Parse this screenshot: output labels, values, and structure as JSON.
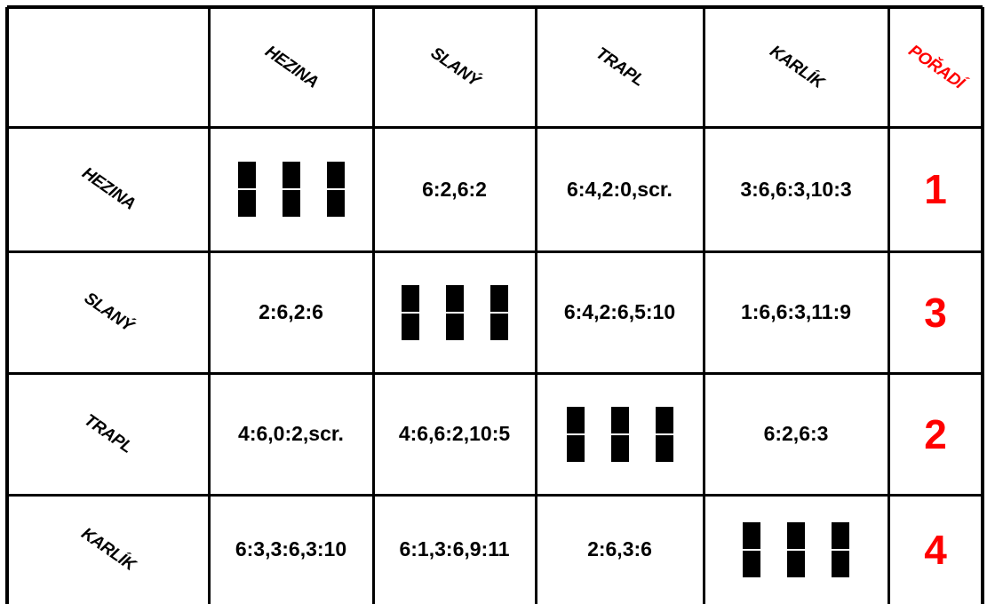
{
  "header": {
    "corner": "",
    "columns": [
      "HEZINA",
      "SLANÝ",
      "TRAPL",
      "KARLÍK"
    ],
    "rank_label": "POŘADÍ"
  },
  "rows": [
    {
      "name": "HEZINA",
      "results": [
        "",
        "6:2,6:2",
        "6:4,2:0,scr.",
        "3:6,6:3,10:3"
      ],
      "rank": "1"
    },
    {
      "name": "SLANÝ",
      "results": [
        "2:6,2:6",
        "",
        "6:4,2:6,5:10",
        "1:6,6:3,11:9"
      ],
      "rank": "3"
    },
    {
      "name": "TRAPL",
      "results": [
        "4:6,0:2,scr.",
        "4:6,6:2,10:5",
        "",
        "6:2,6:3"
      ],
      "rank": "2"
    },
    {
      "name": "KARLÍK",
      "results": [
        "6:3,3:6,3:10",
        "6:1,3:6,9:11",
        "2:6,3:6",
        ""
      ],
      "rank": "4"
    }
  ],
  "colors": {
    "rank": "#ff0000",
    "grid": "#000000",
    "text": "#000000"
  }
}
